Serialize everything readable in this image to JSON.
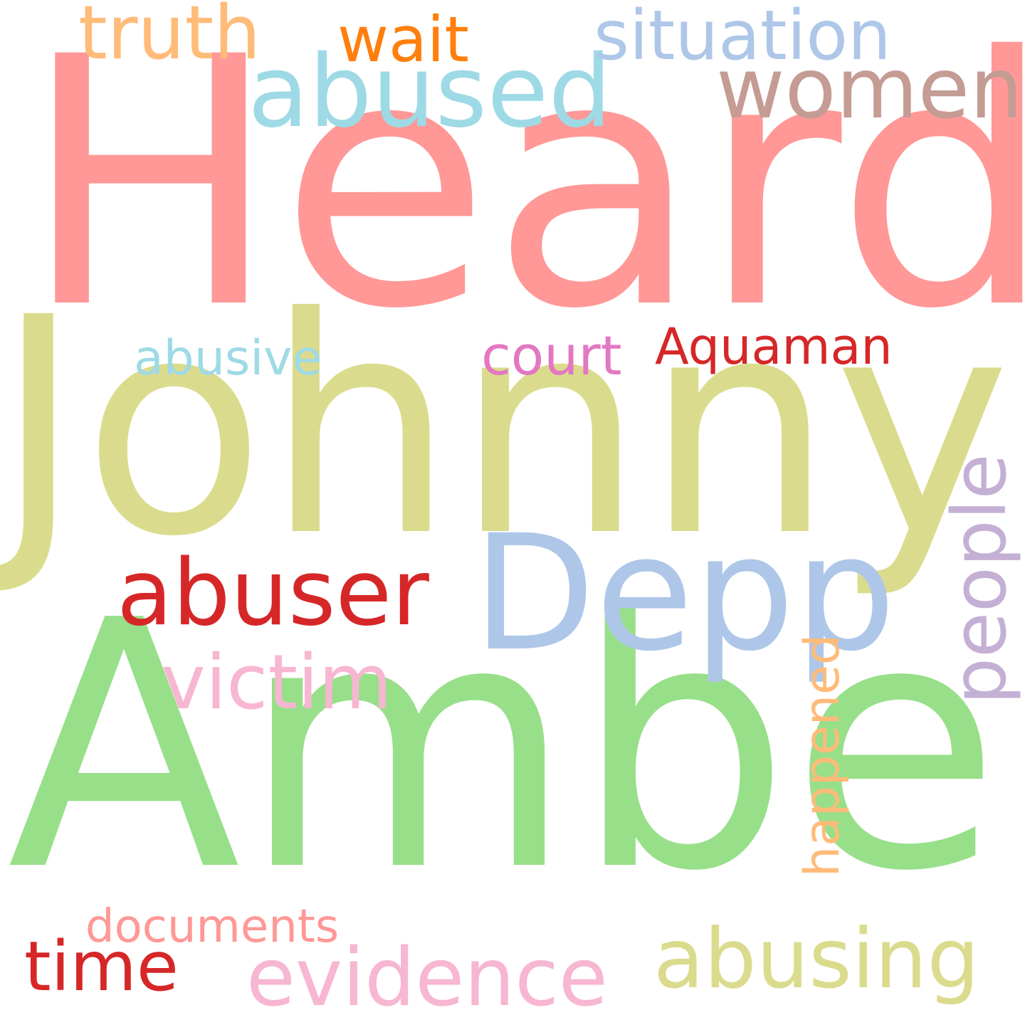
{
  "words": {
    "heard": {
      "text": "Heard",
      "color": "#FF9896"
    },
    "johnny": {
      "text": "Johnny",
      "color": "#DBDB8D"
    },
    "amber": {
      "text": "Amber",
      "color": "#98DF8A"
    },
    "depp": {
      "text": "Depp",
      "color": "#AEC7E8"
    },
    "abused": {
      "text": "abused",
      "color": "#9EDAE5"
    },
    "women": {
      "text": "women",
      "color": "#C49C94"
    },
    "situation": {
      "text": "situation",
      "color": "#AEC7E8"
    },
    "truth": {
      "text": "truth",
      "color": "#FFBB78"
    },
    "wait": {
      "text": "wait",
      "color": "#FF7F0E"
    },
    "abusive": {
      "text": "abusive",
      "color": "#9EDAE5"
    },
    "court": {
      "text": "court",
      "color": "#E377C2"
    },
    "aquaman": {
      "text": "Aquaman",
      "color": "#D62728"
    },
    "abuser": {
      "text": "abuser",
      "color": "#D62728"
    },
    "people": {
      "text": "people",
      "color": "#C5B0D5"
    },
    "victim": {
      "text": "victim",
      "color": "#F7B6D2"
    },
    "happened": {
      "text": "happened",
      "color": "#FFBB78"
    },
    "documents": {
      "text": "documents",
      "color": "#FF9896"
    },
    "time": {
      "text": "time",
      "color": "#D62728"
    },
    "evidence": {
      "text": "evidence",
      "color": "#F7B6D2"
    },
    "abusing": {
      "text": "abusing",
      "color": "#DBDB8D"
    }
  }
}
